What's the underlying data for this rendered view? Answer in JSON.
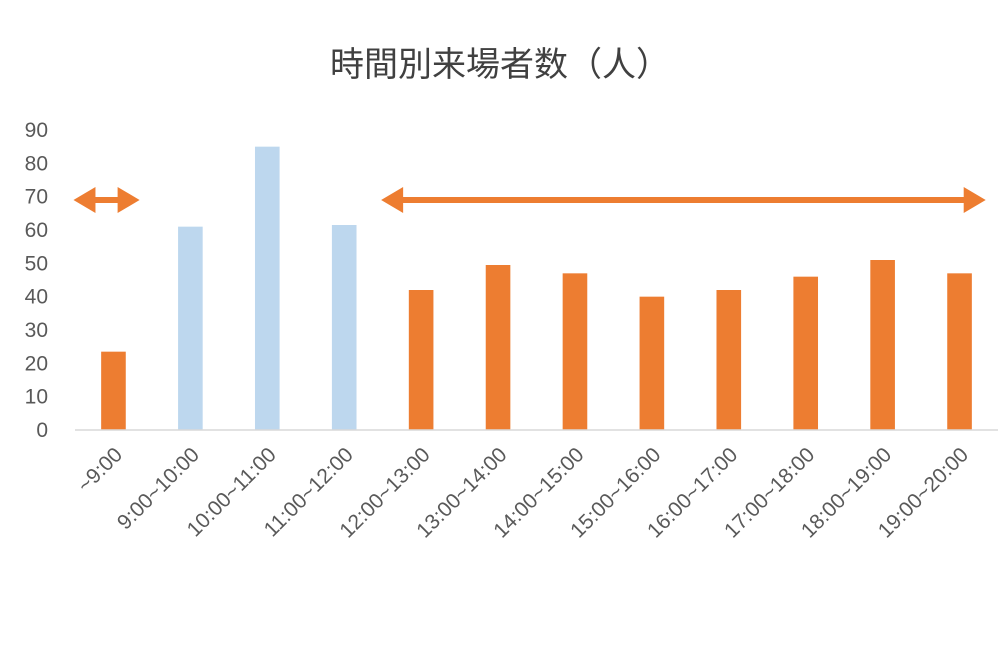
{
  "chart_data": {
    "type": "bar",
    "title": "時間別来場者数（人）",
    "xlabel": "",
    "ylabel": "",
    "categories": [
      "~9:00",
      "9:00~10:00",
      "10:00~11:00",
      "11:00~12:00",
      "12:00~13:00",
      "13:00~14:00",
      "14:00~15:00",
      "15:00~16:00",
      "16:00~17:00",
      "17:00~18:00",
      "18:00~19:00",
      "19:00~20:00"
    ],
    "values": [
      23.5,
      61,
      85,
      61.5,
      42,
      49.5,
      47,
      40,
      42,
      46,
      51,
      47
    ],
    "bar_colors": [
      "#ED7D31",
      "#BDD7EE",
      "#BDD7EE",
      "#BDD7EE",
      "#ED7D31",
      "#ED7D31",
      "#ED7D31",
      "#ED7D31",
      "#ED7D31",
      "#ED7D31",
      "#ED7D31",
      "#ED7D31"
    ],
    "ylim": [
      0,
      90
    ],
    "yticks": [
      0,
      10,
      20,
      30,
      40,
      50,
      60,
      70,
      80,
      90
    ],
    "grid": false,
    "legend": "none",
    "annotations": [
      {
        "type": "double-arrow",
        "from_category": 0,
        "to_category": 0,
        "y": 69,
        "color": "#ED7D31"
      },
      {
        "type": "double-arrow",
        "from_category": 4,
        "to_category": 11,
        "y": 69,
        "color": "#ED7D31"
      }
    ]
  }
}
